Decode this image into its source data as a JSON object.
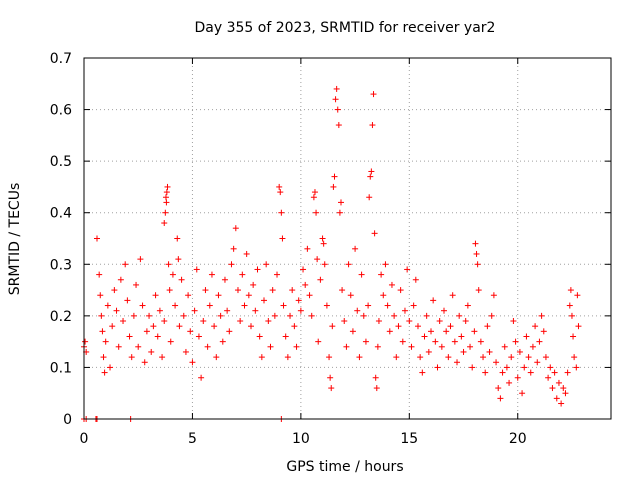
{
  "chart_data": {
    "type": "scatter",
    "title": "Day 355 of 2023, SRMTID for receiver yar2",
    "xlabel": "GPS time / hours",
    "ylabel": "SRMTID / TECUs",
    "xlim": [
      0,
      24.3
    ],
    "ylim": [
      0,
      0.7
    ],
    "x_ticks": [
      0,
      5,
      10,
      15,
      20
    ],
    "x_tick_labels": [
      "0",
      "5",
      "10",
      "15",
      "20"
    ],
    "y_ticks": [
      0,
      0.1,
      0.2,
      0.3,
      0.4,
      0.5,
      0.6,
      0.7
    ],
    "y_tick_labels": [
      "0",
      "0.1",
      "0.2",
      "0.3",
      "0.4",
      "0.5",
      "0.6",
      "0.7"
    ],
    "grid": true,
    "marker": "+",
    "color": "#ff0000",
    "series": [
      {
        "name": "SRMTID yar2",
        "points": [
          [
            0.0,
            0.14
          ],
          [
            0.05,
            0.15
          ],
          [
            0.1,
            0.13
          ],
          [
            0.0,
            0.0
          ],
          [
            0.1,
            0.0
          ],
          [
            0.55,
            0.0
          ],
          [
            0.6,
            0.0
          ],
          [
            2.15,
            0.0
          ],
          [
            9.1,
            0.0
          ],
          [
            0.6,
            0.35
          ],
          [
            0.7,
            0.28
          ],
          [
            0.75,
            0.24
          ],
          [
            0.8,
            0.2
          ],
          [
            0.85,
            0.17
          ],
          [
            0.9,
            0.12
          ],
          [
            0.95,
            0.09
          ],
          [
            1.0,
            0.15
          ],
          [
            1.1,
            0.22
          ],
          [
            1.2,
            0.1
          ],
          [
            1.3,
            0.18
          ],
          [
            1.4,
            0.25
          ],
          [
            1.5,
            0.21
          ],
          [
            1.6,
            0.14
          ],
          [
            1.7,
            0.27
          ],
          [
            1.8,
            0.19
          ],
          [
            1.9,
            0.3
          ],
          [
            2.0,
            0.23
          ],
          [
            2.1,
            0.16
          ],
          [
            2.2,
            0.12
          ],
          [
            2.3,
            0.2
          ],
          [
            2.4,
            0.26
          ],
          [
            2.5,
            0.14
          ],
          [
            2.6,
            0.31
          ],
          [
            2.7,
            0.22
          ],
          [
            2.8,
            0.11
          ],
          [
            2.9,
            0.17
          ],
          [
            3.0,
            0.2
          ],
          [
            3.1,
            0.13
          ],
          [
            3.2,
            0.18
          ],
          [
            3.3,
            0.24
          ],
          [
            3.4,
            0.16
          ],
          [
            3.5,
            0.21
          ],
          [
            3.6,
            0.12
          ],
          [
            3.7,
            0.19
          ],
          [
            3.7,
            0.38
          ],
          [
            3.75,
            0.4
          ],
          [
            3.8,
            0.42
          ],
          [
            3.82,
            0.44
          ],
          [
            3.85,
            0.45
          ],
          [
            3.78,
            0.43
          ],
          [
            3.9,
            0.3
          ],
          [
            3.95,
            0.25
          ],
          [
            4.0,
            0.15
          ],
          [
            4.1,
            0.28
          ],
          [
            4.2,
            0.22
          ],
          [
            4.3,
            0.35
          ],
          [
            4.35,
            0.31
          ],
          [
            4.4,
            0.18
          ],
          [
            4.5,
            0.27
          ],
          [
            4.6,
            0.2
          ],
          [
            4.7,
            0.13
          ],
          [
            4.8,
            0.24
          ],
          [
            4.9,
            0.17
          ],
          [
            5.0,
            0.11
          ],
          [
            5.1,
            0.21
          ],
          [
            5.2,
            0.29
          ],
          [
            5.3,
            0.16
          ],
          [
            5.4,
            0.08
          ],
          [
            5.5,
            0.19
          ],
          [
            5.6,
            0.25
          ],
          [
            5.7,
            0.14
          ],
          [
            5.8,
            0.22
          ],
          [
            5.9,
            0.28
          ],
          [
            6.0,
            0.18
          ],
          [
            6.1,
            0.12
          ],
          [
            6.2,
            0.24
          ],
          [
            6.3,
            0.2
          ],
          [
            6.4,
            0.15
          ],
          [
            6.5,
            0.27
          ],
          [
            6.6,
            0.21
          ],
          [
            6.7,
            0.17
          ],
          [
            6.8,
            0.3
          ],
          [
            6.9,
            0.33
          ],
          [
            7.0,
            0.37
          ],
          [
            7.1,
            0.25
          ],
          [
            7.2,
            0.19
          ],
          [
            7.3,
            0.28
          ],
          [
            7.4,
            0.22
          ],
          [
            7.5,
            0.32
          ],
          [
            7.6,
            0.24
          ],
          [
            7.7,
            0.18
          ],
          [
            7.8,
            0.26
          ],
          [
            7.9,
            0.21
          ],
          [
            8.0,
            0.29
          ],
          [
            8.1,
            0.16
          ],
          [
            8.2,
            0.12
          ],
          [
            8.3,
            0.23
          ],
          [
            8.4,
            0.3
          ],
          [
            8.5,
            0.19
          ],
          [
            8.6,
            0.14
          ],
          [
            8.7,
            0.25
          ],
          [
            8.8,
            0.2
          ],
          [
            8.9,
            0.28
          ],
          [
            9.0,
            0.45
          ],
          [
            9.05,
            0.44
          ],
          [
            9.1,
            0.4
          ],
          [
            9.15,
            0.35
          ],
          [
            9.2,
            0.22
          ],
          [
            9.3,
            0.16
          ],
          [
            9.4,
            0.12
          ],
          [
            9.5,
            0.2
          ],
          [
            9.6,
            0.25
          ],
          [
            9.7,
            0.18
          ],
          [
            9.8,
            0.14
          ],
          [
            9.9,
            0.23
          ],
          [
            10.0,
            0.21
          ],
          [
            10.1,
            0.29
          ],
          [
            10.2,
            0.26
          ],
          [
            10.3,
            0.33
          ],
          [
            10.4,
            0.24
          ],
          [
            10.5,
            0.2
          ],
          [
            10.6,
            0.43
          ],
          [
            10.65,
            0.44
          ],
          [
            10.7,
            0.4
          ],
          [
            10.75,
            0.31
          ],
          [
            10.8,
            0.15
          ],
          [
            10.9,
            0.27
          ],
          [
            11.0,
            0.35
          ],
          [
            11.05,
            0.34
          ],
          [
            11.1,
            0.3
          ],
          [
            11.2,
            0.22
          ],
          [
            11.3,
            0.12
          ],
          [
            11.35,
            0.08
          ],
          [
            11.4,
            0.06
          ],
          [
            11.45,
            0.18
          ],
          [
            11.5,
            0.45
          ],
          [
            11.55,
            0.47
          ],
          [
            11.6,
            0.62
          ],
          [
            11.65,
            0.64
          ],
          [
            11.7,
            0.6
          ],
          [
            11.75,
            0.57
          ],
          [
            11.8,
            0.4
          ],
          [
            11.85,
            0.42
          ],
          [
            11.9,
            0.25
          ],
          [
            12.0,
            0.19
          ],
          [
            12.1,
            0.14
          ],
          [
            12.2,
            0.3
          ],
          [
            12.3,
            0.24
          ],
          [
            12.4,
            0.17
          ],
          [
            12.5,
            0.33
          ],
          [
            12.6,
            0.21
          ],
          [
            12.7,
            0.12
          ],
          [
            12.8,
            0.28
          ],
          [
            12.9,
            0.2
          ],
          [
            13.0,
            0.15
          ],
          [
            13.1,
            0.22
          ],
          [
            13.15,
            0.43
          ],
          [
            13.2,
            0.47
          ],
          [
            13.25,
            0.48
          ],
          [
            13.3,
            0.57
          ],
          [
            13.35,
            0.63
          ],
          [
            13.4,
            0.36
          ],
          [
            13.45,
            0.08
          ],
          [
            13.5,
            0.06
          ],
          [
            13.55,
            0.14
          ],
          [
            13.6,
            0.19
          ],
          [
            13.7,
            0.28
          ],
          [
            13.8,
            0.24
          ],
          [
            13.9,
            0.3
          ],
          [
            14.0,
            0.22
          ],
          [
            14.1,
            0.17
          ],
          [
            14.2,
            0.26
          ],
          [
            14.3,
            0.2
          ],
          [
            14.4,
            0.12
          ],
          [
            14.5,
            0.18
          ],
          [
            14.6,
            0.25
          ],
          [
            14.7,
            0.15
          ],
          [
            14.8,
            0.21
          ],
          [
            14.9,
            0.29
          ],
          [
            15.0,
            0.19
          ],
          [
            15.1,
            0.14
          ],
          [
            15.2,
            0.22
          ],
          [
            15.3,
            0.27
          ],
          [
            15.4,
            0.18
          ],
          [
            15.5,
            0.12
          ],
          [
            15.6,
            0.09
          ],
          [
            15.7,
            0.16
          ],
          [
            15.8,
            0.2
          ],
          [
            15.9,
            0.13
          ],
          [
            16.0,
            0.17
          ],
          [
            16.1,
            0.23
          ],
          [
            16.2,
            0.15
          ],
          [
            16.3,
            0.1
          ],
          [
            16.4,
            0.19
          ],
          [
            16.5,
            0.14
          ],
          [
            16.6,
            0.21
          ],
          [
            16.7,
            0.17
          ],
          [
            16.8,
            0.12
          ],
          [
            16.9,
            0.18
          ],
          [
            17.0,
            0.24
          ],
          [
            17.1,
            0.15
          ],
          [
            17.2,
            0.11
          ],
          [
            17.3,
            0.2
          ],
          [
            17.4,
            0.16
          ],
          [
            17.5,
            0.13
          ],
          [
            17.6,
            0.19
          ],
          [
            17.7,
            0.22
          ],
          [
            17.8,
            0.14
          ],
          [
            17.9,
            0.1
          ],
          [
            18.0,
            0.17
          ],
          [
            18.05,
            0.34
          ],
          [
            18.1,
            0.32
          ],
          [
            18.15,
            0.3
          ],
          [
            18.2,
            0.25
          ],
          [
            18.3,
            0.15
          ],
          [
            18.4,
            0.12
          ],
          [
            18.5,
            0.09
          ],
          [
            18.6,
            0.18
          ],
          [
            18.7,
            0.13
          ],
          [
            18.8,
            0.2
          ],
          [
            18.9,
            0.24
          ],
          [
            19.0,
            0.11
          ],
          [
            19.1,
            0.06
          ],
          [
            19.2,
            0.04
          ],
          [
            19.3,
            0.09
          ],
          [
            19.4,
            0.14
          ],
          [
            19.5,
            0.1
          ],
          [
            19.6,
            0.07
          ],
          [
            19.7,
            0.12
          ],
          [
            19.8,
            0.19
          ],
          [
            19.9,
            0.15
          ],
          [
            20.0,
            0.08
          ],
          [
            20.1,
            0.13
          ],
          [
            20.2,
            0.05
          ],
          [
            20.3,
            0.1
          ],
          [
            20.4,
            0.16
          ],
          [
            20.5,
            0.12
          ],
          [
            20.6,
            0.09
          ],
          [
            20.7,
            0.14
          ],
          [
            20.8,
            0.18
          ],
          [
            20.9,
            0.11
          ],
          [
            21.0,
            0.15
          ],
          [
            21.1,
            0.2
          ],
          [
            21.2,
            0.17
          ],
          [
            21.3,
            0.12
          ],
          [
            21.4,
            0.08
          ],
          [
            21.5,
            0.1
          ],
          [
            21.6,
            0.06
          ],
          [
            21.7,
            0.09
          ],
          [
            21.8,
            0.04
          ],
          [
            21.9,
            0.07
          ],
          [
            22.0,
            0.03
          ],
          [
            22.1,
            0.06
          ],
          [
            22.2,
            0.05
          ],
          [
            22.3,
            0.09
          ],
          [
            22.4,
            0.22
          ],
          [
            22.45,
            0.25
          ],
          [
            22.5,
            0.2
          ],
          [
            22.55,
            0.16
          ],
          [
            22.6,
            0.12
          ],
          [
            22.7,
            0.1
          ],
          [
            22.75,
            0.24
          ],
          [
            22.8,
            0.18
          ]
        ]
      }
    ]
  }
}
